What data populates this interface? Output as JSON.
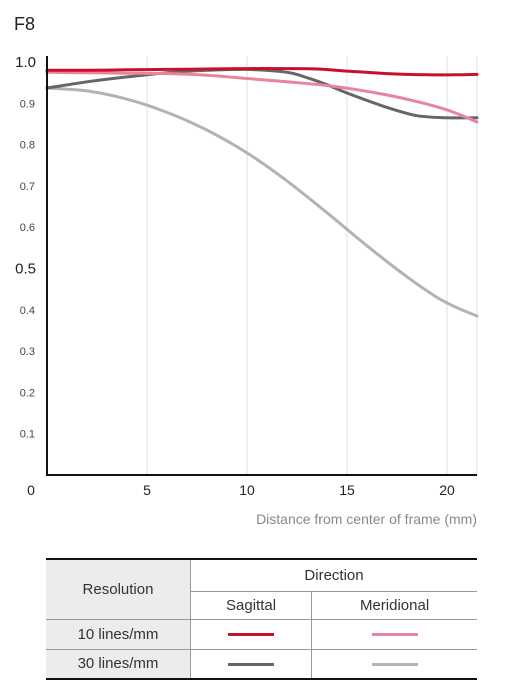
{
  "chart_data": {
    "type": "line",
    "title": "F8",
    "xlabel": "Distance from center of frame (mm)",
    "ylabel": "",
    "xlim": [
      0,
      21.5
    ],
    "ylim": [
      0,
      1.0
    ],
    "x_ticks": [
      {
        "value": 0,
        "label": "0"
      },
      {
        "value": 5,
        "label": "5"
      },
      {
        "value": 10,
        "label": "10"
      },
      {
        "value": 15,
        "label": "15"
      },
      {
        "value": 20,
        "label": "20"
      }
    ],
    "y_ticks": [
      {
        "value": 0.1,
        "label": "0.1",
        "major": false
      },
      {
        "value": 0.2,
        "label": "0.2",
        "major": false
      },
      {
        "value": 0.3,
        "label": "0.3",
        "major": false
      },
      {
        "value": 0.4,
        "label": "0.4",
        "major": false
      },
      {
        "value": 0.5,
        "label": "0.5",
        "major": true
      },
      {
        "value": 0.6,
        "label": "0.6",
        "major": false
      },
      {
        "value": 0.7,
        "label": "0.7",
        "major": false
      },
      {
        "value": 0.8,
        "label": "0.8",
        "major": false
      },
      {
        "value": 0.9,
        "label": "0.9",
        "major": false
      },
      {
        "value": 1.0,
        "label": "1.0",
        "major": true
      }
    ],
    "grid": "vertical",
    "legend_position": "bottom",
    "series": [
      {
        "resolution": "10 lines/mm",
        "direction": "Sagittal",
        "color": "#c8102e",
        "width": 3,
        "points": [
          [
            0,
            0.98
          ],
          [
            2,
            0.98
          ],
          [
            4,
            0.981
          ],
          [
            6,
            0.982
          ],
          [
            8,
            0.983
          ],
          [
            10,
            0.984
          ],
          [
            12,
            0.984
          ],
          [
            13.5,
            0.983
          ],
          [
            15,
            0.978
          ],
          [
            17,
            0.972
          ],
          [
            19,
            0.969
          ],
          [
            20.5,
            0.969
          ],
          [
            21.5,
            0.97
          ]
        ]
      },
      {
        "resolution": "10 lines/mm",
        "direction": "Meridional",
        "color": "#e8859c",
        "width": 3,
        "points": [
          [
            0,
            0.975
          ],
          [
            2,
            0.974
          ],
          [
            4,
            0.973
          ],
          [
            6,
            0.972
          ],
          [
            8,
            0.968
          ],
          [
            10,
            0.96
          ],
          [
            12,
            0.952
          ],
          [
            14,
            0.943
          ],
          [
            16,
            0.929
          ],
          [
            18,
            0.91
          ],
          [
            20,
            0.884
          ],
          [
            21.5,
            0.855
          ]
        ]
      },
      {
        "resolution": "30 lines/mm",
        "direction": "Sagittal",
        "color": "#666666",
        "width": 3,
        "points": [
          [
            0,
            0.937
          ],
          [
            2,
            0.952
          ],
          [
            4,
            0.964
          ],
          [
            6,
            0.974
          ],
          [
            8,
            0.98
          ],
          [
            10,
            0.982
          ],
          [
            12,
            0.975
          ],
          [
            13,
            0.962
          ],
          [
            14,
            0.945
          ],
          [
            15,
            0.925
          ],
          [
            17,
            0.89
          ],
          [
            18.5,
            0.87
          ],
          [
            20,
            0.865
          ],
          [
            21.5,
            0.865
          ]
        ]
      },
      {
        "resolution": "30 lines/mm",
        "direction": "Meridional",
        "color": "#b3b3b3",
        "width": 3,
        "points": [
          [
            0,
            0.937
          ],
          [
            2,
            0.93
          ],
          [
            4,
            0.91
          ],
          [
            6,
            0.878
          ],
          [
            8,
            0.835
          ],
          [
            10,
            0.78
          ],
          [
            12,
            0.712
          ],
          [
            14,
            0.635
          ],
          [
            16,
            0.555
          ],
          [
            18,
            0.48
          ],
          [
            19.5,
            0.43
          ],
          [
            20.5,
            0.405
          ],
          [
            21.5,
            0.385
          ]
        ]
      }
    ]
  },
  "legend": {
    "resolution_header": "Resolution",
    "direction_header": "Direction",
    "sagittal_label": "Sagittal",
    "meridional_label": "Meridional",
    "rows": [
      {
        "label": "10 lines/mm",
        "sagittal_color": "#c8102e",
        "meridional_color": "#e8859c"
      },
      {
        "label": "30 lines/mm",
        "sagittal_color": "#666666",
        "meridional_color": "#b3b3b3"
      }
    ]
  }
}
